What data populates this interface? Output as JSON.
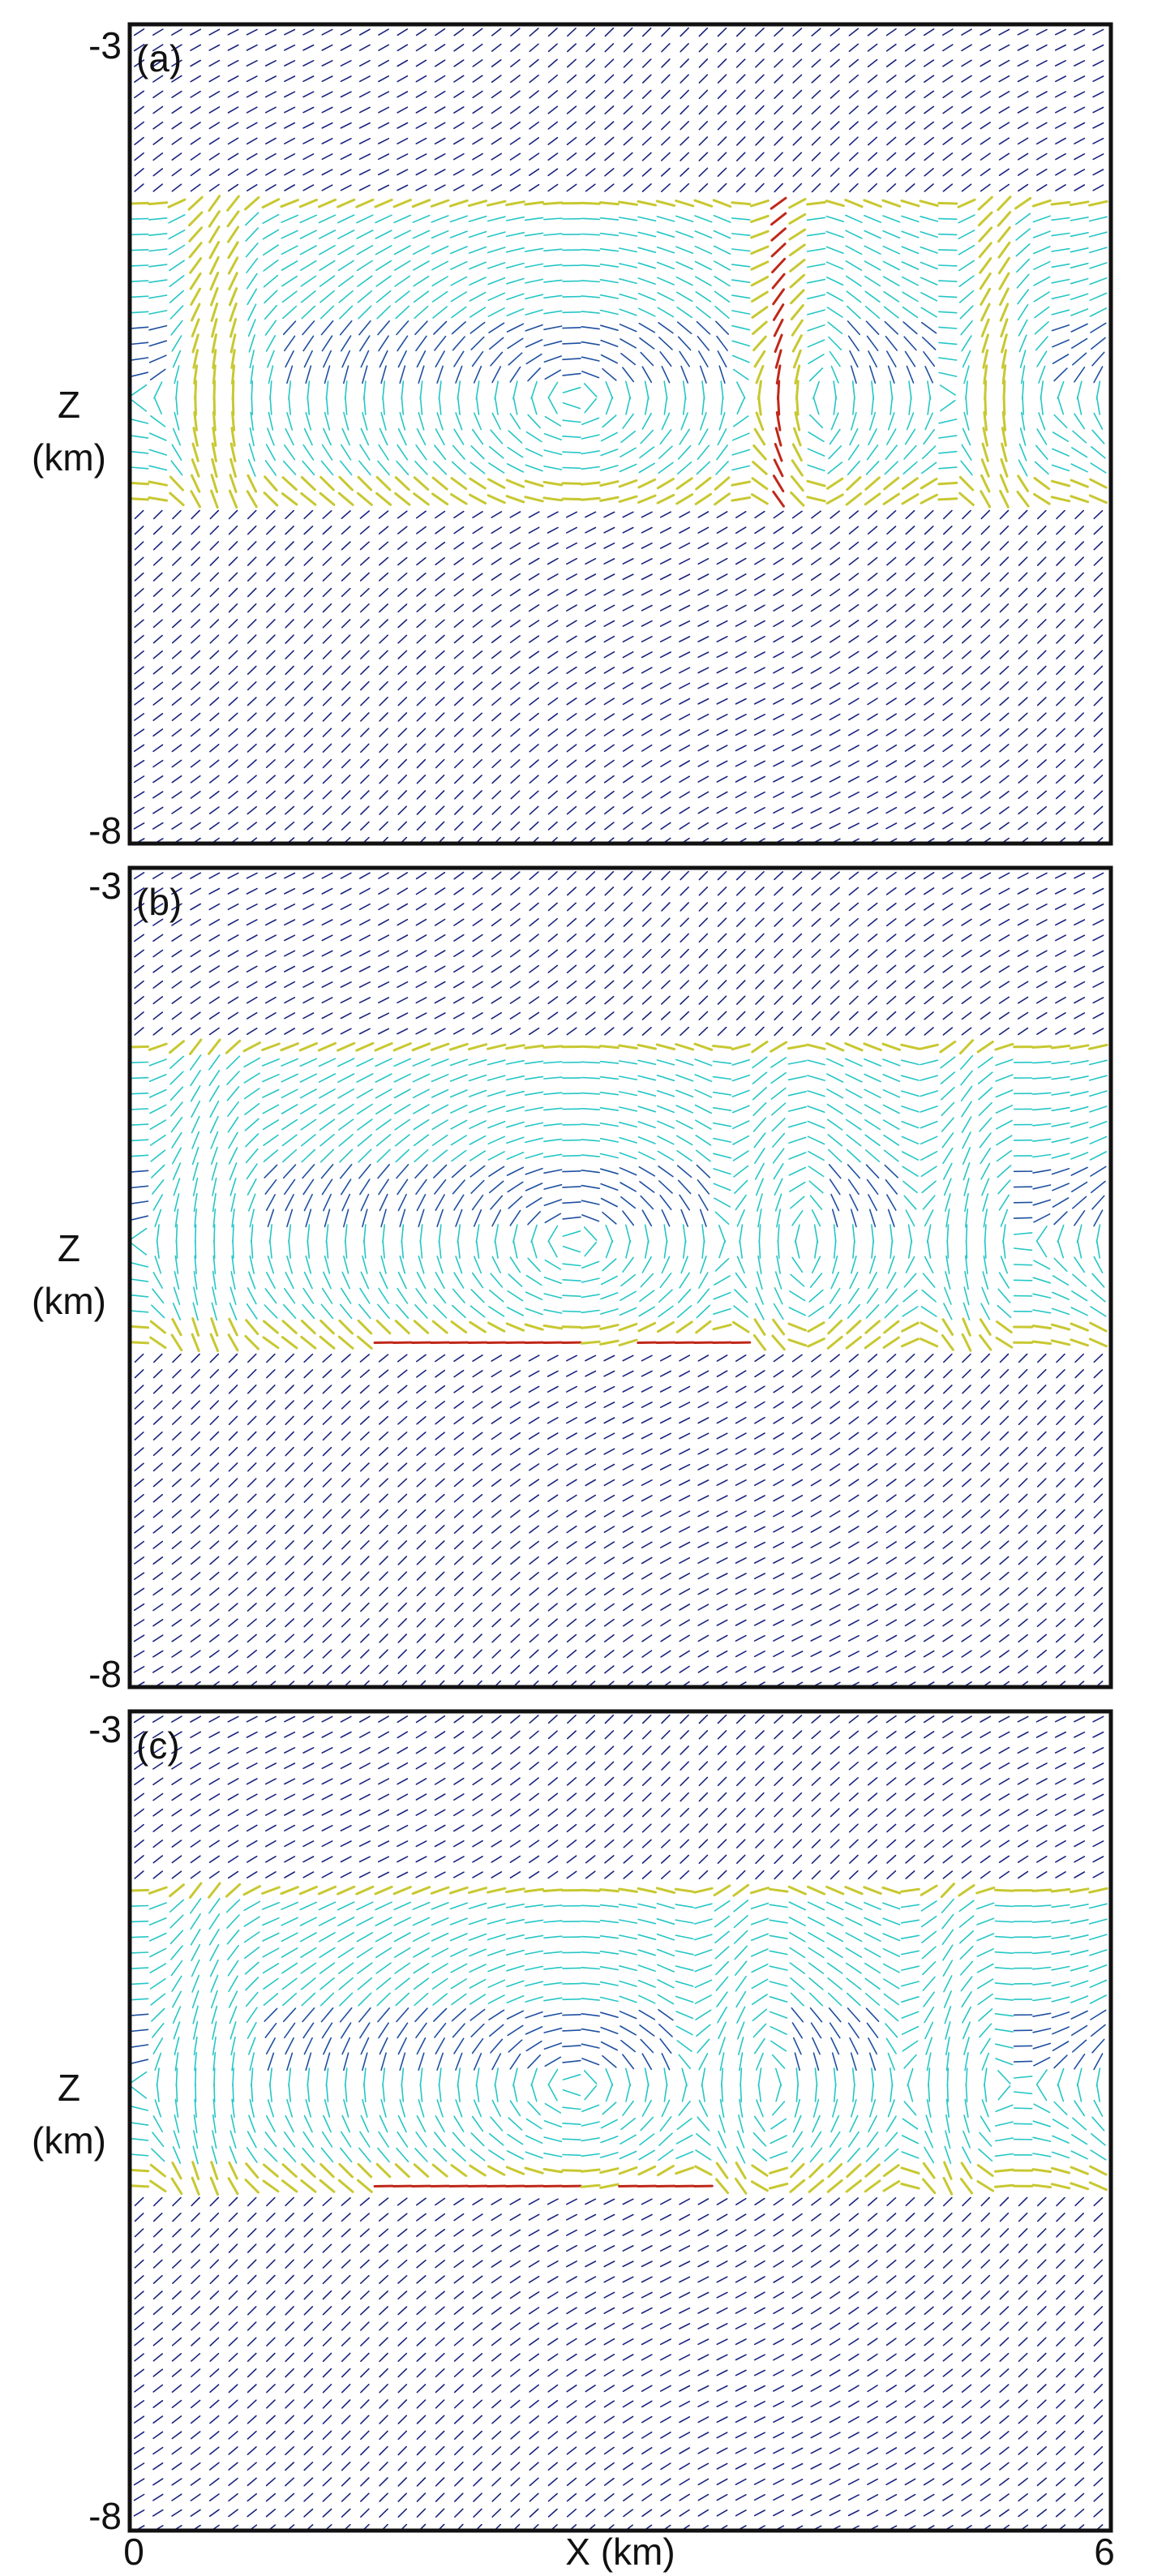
{
  "chart_data": {
    "type": "vector-field",
    "xlabel": "X (km)",
    "x_ticks": [
      "0",
      "6"
    ],
    "xlim": [
      0,
      6
    ],
    "colors": {
      "weak": "#1a237e",
      "low": "#1e4fa0",
      "mid": "#26c6c6",
      "high": "#c8c832",
      "strong": "#c0281a"
    },
    "panels": [
      {
        "label": "(a)",
        "ylabel_line1": "Z",
        "ylabel_line2": "(km)",
        "y_ticks": [
          "-3",
          "-8"
        ],
        "ylim": [
          -8,
          -3
        ],
        "layer_top": -4.0,
        "layer_bottom": -5.9,
        "interface_highlight": [],
        "updrafts": [
          [
            0.55,
            0.9
          ],
          [
            4.0,
            1.0
          ],
          [
            5.3,
            0.7
          ]
        ]
      },
      {
        "label": "(b)",
        "ylabel_line1": "Z",
        "ylabel_line2": "(km)",
        "y_ticks": [
          "-3",
          "-8"
        ],
        "ylim": [
          -8,
          -3
        ],
        "layer_top": -4.0,
        "layer_bottom": -5.9,
        "interface_highlight": [
          [
            1.5,
            2.8
          ],
          [
            3.1,
            3.8
          ]
        ],
        "updrafts": [
          [
            0.45,
            0.45
          ],
          [
            3.9,
            0.45
          ],
          [
            5.1,
            0.4
          ]
        ]
      },
      {
        "label": "(c)",
        "ylabel_line1": "Z",
        "ylabel_line2": "(km)",
        "y_ticks": [
          "-3",
          "-8"
        ],
        "ylim": [
          -8,
          -3
        ],
        "layer_top": -4.0,
        "layer_bottom": -5.9,
        "interface_highlight": [
          [
            1.5,
            2.8
          ],
          [
            3.0,
            3.6
          ]
        ],
        "updrafts": [
          [
            0.45,
            0.45
          ],
          [
            3.7,
            0.5
          ],
          [
            5.0,
            0.4
          ]
        ]
      }
    ]
  }
}
